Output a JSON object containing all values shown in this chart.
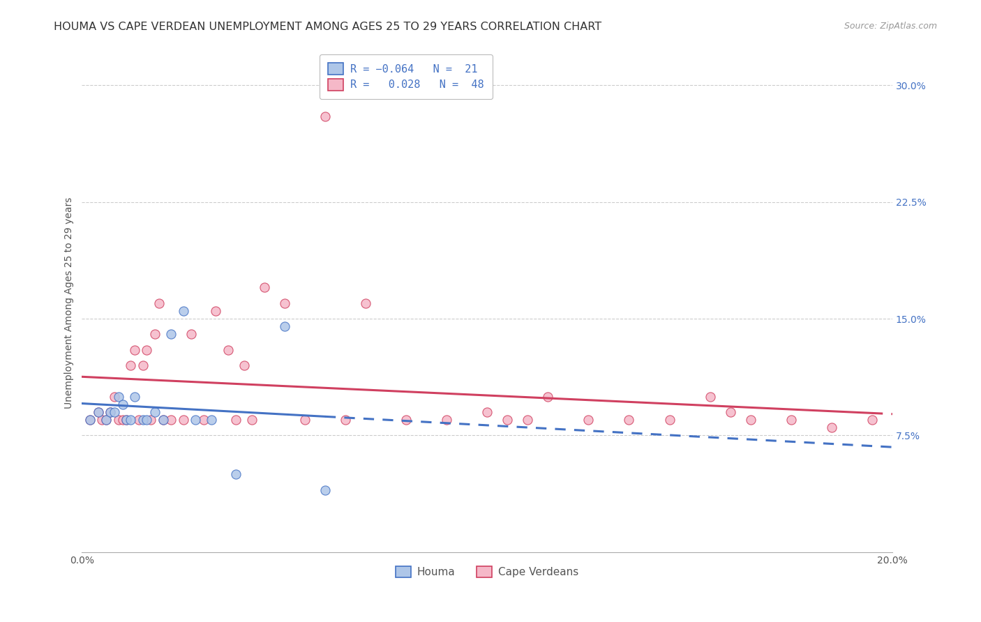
{
  "title": "HOUMA VS CAPE VERDEAN UNEMPLOYMENT AMONG AGES 25 TO 29 YEARS CORRELATION CHART",
  "source": "Source: ZipAtlas.com",
  "ylabel": "Unemployment Among Ages 25 to 29 years",
  "xlim": [
    0.0,
    0.2
  ],
  "ylim": [
    0.0,
    0.32
  ],
  "xticks": [
    0.0,
    0.05,
    0.1,
    0.15,
    0.2
  ],
  "xticklabels": [
    "0.0%",
    "",
    "",
    "",
    "20.0%"
  ],
  "yticks_right": [
    0.075,
    0.15,
    0.225,
    0.3
  ],
  "yticklabels_right": [
    "7.5%",
    "15.0%",
    "22.5%",
    "30.0%"
  ],
  "houma_R": "-0.064",
  "houma_N": "21",
  "cape_R": "0.028",
  "cape_N": "48",
  "houma_color": "#aec6e8",
  "cape_color": "#f5b8c8",
  "houma_line_color": "#4472C4",
  "cape_line_color": "#D04060",
  "background_color": "#ffffff",
  "grid_color": "#cccccc",
  "houma_x": [
    0.002,
    0.004,
    0.006,
    0.007,
    0.008,
    0.009,
    0.01,
    0.011,
    0.012,
    0.013,
    0.015,
    0.016,
    0.018,
    0.02,
    0.022,
    0.025,
    0.028,
    0.032,
    0.038,
    0.05,
    0.06
  ],
  "houma_y": [
    0.085,
    0.09,
    0.085,
    0.09,
    0.09,
    0.1,
    0.095,
    0.085,
    0.085,
    0.1,
    0.085,
    0.085,
    0.09,
    0.085,
    0.14,
    0.155,
    0.085,
    0.085,
    0.05,
    0.145,
    0.04
  ],
  "cape_x": [
    0.002,
    0.004,
    0.005,
    0.006,
    0.007,
    0.008,
    0.009,
    0.01,
    0.011,
    0.012,
    0.013,
    0.014,
    0.015,
    0.016,
    0.017,
    0.018,
    0.019,
    0.02,
    0.022,
    0.025,
    0.027,
    0.03,
    0.033,
    0.036,
    0.038,
    0.04,
    0.042,
    0.045,
    0.05,
    0.055,
    0.06,
    0.065,
    0.07,
    0.08,
    0.09,
    0.1,
    0.105,
    0.11,
    0.115,
    0.125,
    0.135,
    0.145,
    0.155,
    0.16,
    0.165,
    0.175,
    0.185,
    0.195
  ],
  "cape_y": [
    0.085,
    0.09,
    0.085,
    0.085,
    0.09,
    0.1,
    0.085,
    0.085,
    0.085,
    0.12,
    0.13,
    0.085,
    0.12,
    0.13,
    0.085,
    0.14,
    0.16,
    0.085,
    0.085,
    0.085,
    0.14,
    0.085,
    0.155,
    0.13,
    0.085,
    0.12,
    0.085,
    0.17,
    0.16,
    0.085,
    0.28,
    0.085,
    0.16,
    0.085,
    0.085,
    0.09,
    0.085,
    0.085,
    0.1,
    0.085,
    0.085,
    0.085,
    0.1,
    0.09,
    0.085,
    0.085,
    0.08,
    0.085
  ],
  "marker_size": 90,
  "title_fontsize": 11.5,
  "axis_label_fontsize": 10,
  "tick_fontsize": 10,
  "legend_fontsize": 11
}
